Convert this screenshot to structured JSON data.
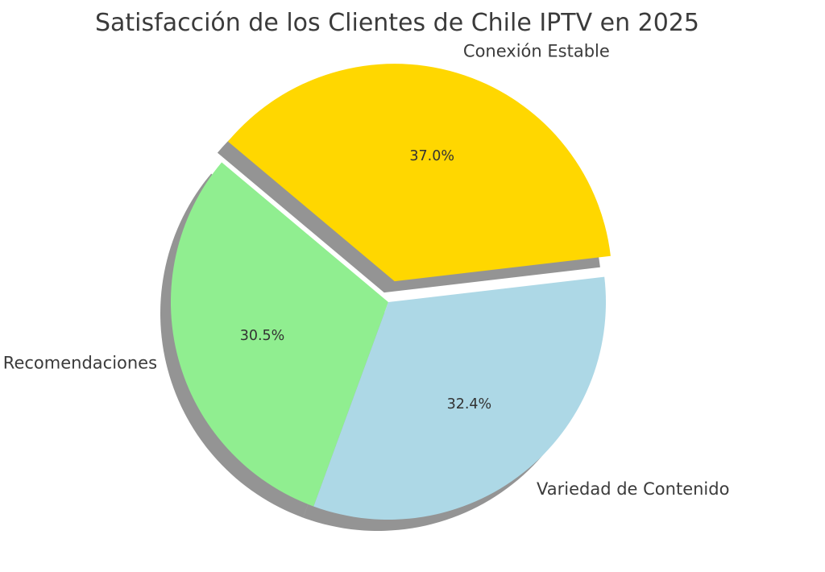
{
  "chart_data": {
    "type": "pie",
    "title": "Satisfacción de los Clientes de Chile IPTV en 2025",
    "categories": [
      "Recomendaciones",
      "Variedad de Contenido",
      "Conexión Estable"
    ],
    "values": [
      30.5,
      32.4,
      37.0
    ],
    "value_labels": [
      "30.5%",
      "32.4%",
      "37.0%"
    ],
    "colors": [
      "#90ee90",
      "#add8e6",
      "#ffd700"
    ],
    "exploded": [
      false,
      false,
      true
    ],
    "shadow": true,
    "start_angle_deg": 140,
    "direction": "counterclockwise"
  }
}
